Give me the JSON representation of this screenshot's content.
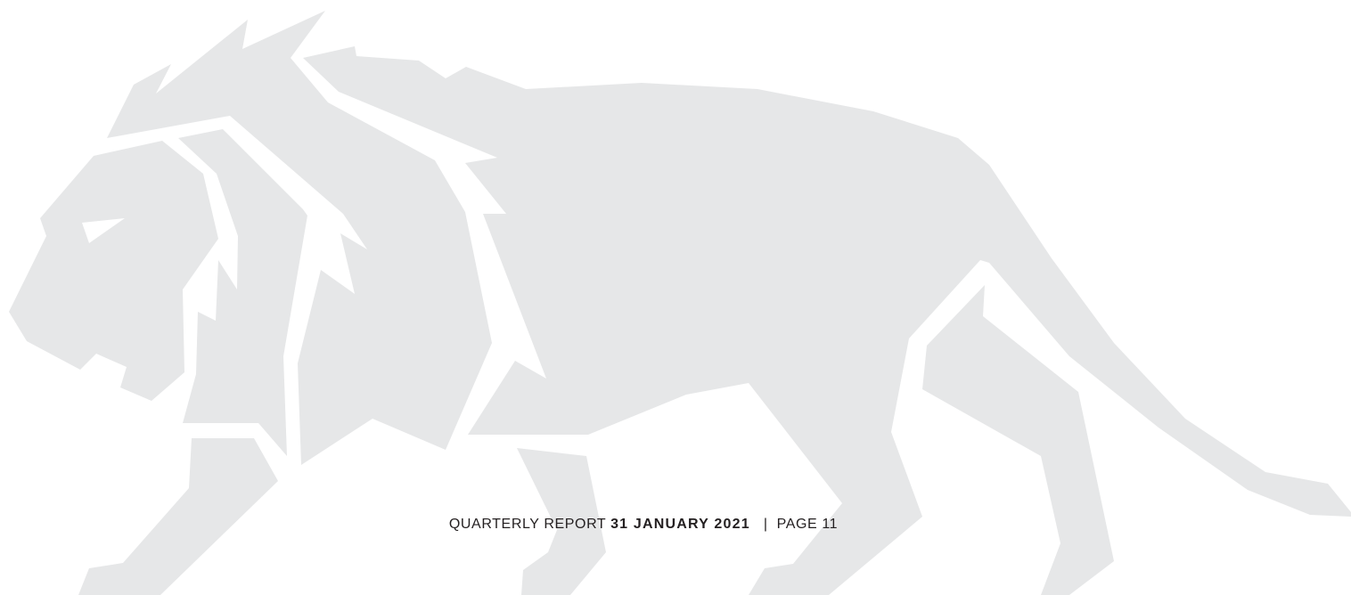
{
  "footer": {
    "report": "QUARTERLY REPORT",
    "date": "31 JANUARY 2021",
    "separator": "|",
    "page": "PAGE 11"
  }
}
